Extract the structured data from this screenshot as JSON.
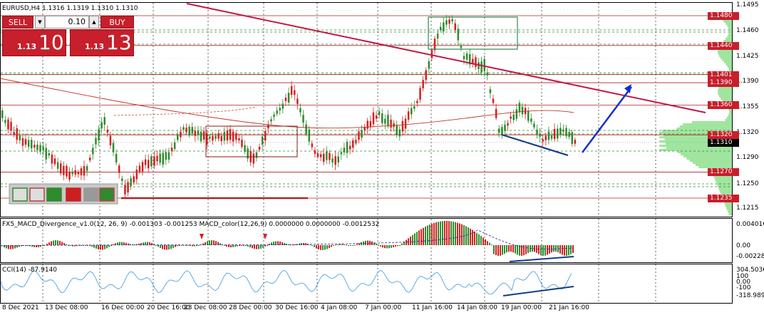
{
  "symbol_label": "EURUSD,H4  1.1316 1.1319 1.1310 1.1310",
  "trade_panel": {
    "sell_label": "SELL",
    "buy_label": "BUY",
    "lot_value": "0.10",
    "sell_small": "1.13",
    "sell_big": "10",
    "buy_small": "1.13",
    "buy_big": "13"
  },
  "price_axis": {
    "ticks": [
      "1.1495",
      "1.1460",
      "1.1425",
      "1.1390",
      "1.1355",
      "1.1320",
      "1.1290",
      "1.1250",
      "1.1215"
    ],
    "levels": [
      {
        "text": "1.1480",
        "value": 1.148
      },
      {
        "text": "1.1440",
        "value": 1.144
      },
      {
        "text": "1.1401",
        "value": 1.1401
      },
      {
        "text": "1.1390",
        "value": 1.139
      },
      {
        "text": "1.1360",
        "value": 1.136
      },
      {
        "text": "1.1320",
        "value": 1.132
      },
      {
        "text": "1.1270",
        "value": 1.127
      },
      {
        "text": "1.1235",
        "value": 1.1235
      }
    ],
    "current": {
      "text": "1.1310",
      "value": 1.131
    }
  },
  "macd_panel": {
    "label": "FX5_MACD_Divergence_v1.0(12, 26, 9) -0.001303 -0.001253  MACD_color(12,26,9) 0.0000000 0.0000000 -0.0012532",
    "ticks": [
      "0.00401€",
      "0.00",
      "-0.00228€"
    ]
  },
  "cci_panel": {
    "label": "CCI(14) -87.9140",
    "ticks": [
      "304.5036",
      "100",
      "0.00",
      "-100",
      "-318.989€"
    ]
  },
  "time_axis": [
    "8 Dec 2021",
    "13 Dec 08:00",
    "16 Dec 00:00",
    "20 Dec 16:00",
    "23 Dec 08:00",
    "28 Dec 00:00",
    "30 Dec 16:00",
    "4 Jan 08:00",
    "7 Jan 00:00",
    "11 Jan 16:00",
    "14 Jan 08:00",
    "19 Jan 00:00",
    "21 Jan 16:00"
  ],
  "colors": {
    "bull": "#2e8b2e",
    "bear": "#d42020",
    "hline": "#b22222",
    "dline": "#2e8b2e",
    "trend": "#c21846",
    "arrow": "#1530c8",
    "profile": "#9fe59f"
  }
}
